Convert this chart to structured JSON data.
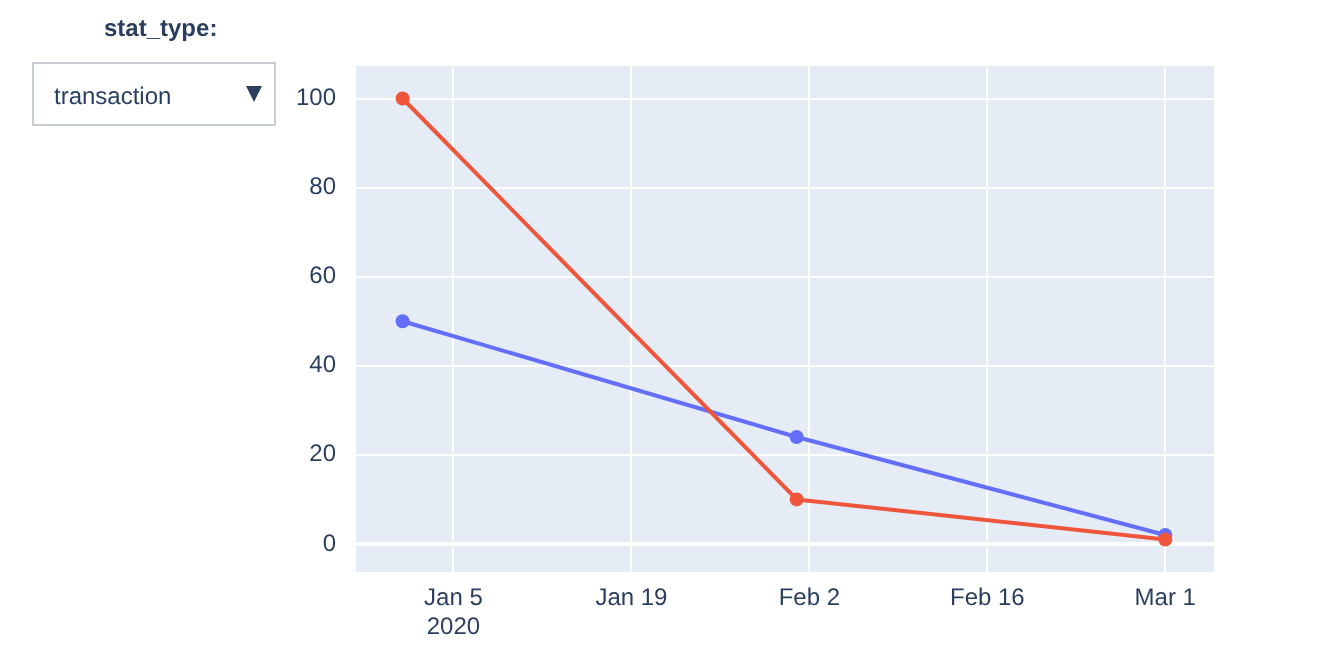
{
  "chart_data": {
    "type": "line",
    "x": [
      "2020-01-01",
      "2020-02-01",
      "2020-03-01"
    ],
    "series": [
      {
        "color": "#636efa",
        "values": [
          50,
          24,
          2
        ]
      },
      {
        "color": "#ef553b",
        "values": [
          100,
          10,
          1
        ]
      }
    ],
    "xlim": [
      "2019-12-28T08:00",
      "2020-03-04T20:00"
    ],
    "xticks": [
      {
        "value": "2020-01-05",
        "label": "Jan 5\n2020"
      },
      {
        "value": "2020-01-19",
        "label": "Jan 19"
      },
      {
        "value": "2020-02-02",
        "label": "Feb 2"
      },
      {
        "value": "2020-02-16",
        "label": "Feb 16"
      },
      {
        "value": "2020-03-01",
        "label": "Mar 1"
      }
    ],
    "ylim": [
      -6.3,
      107.3
    ],
    "yticks": [
      0,
      20,
      40,
      60,
      80,
      100
    ],
    "grid": true,
    "marker": "circle",
    "annotations": [
      "stat_type:",
      "transaction"
    ]
  }
}
